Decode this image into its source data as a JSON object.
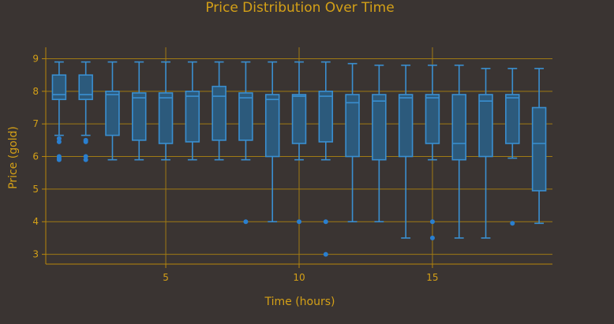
{
  "colors": {
    "background": "#3a3432",
    "text": "#d4a017",
    "grid": "#a07a14",
    "axis_line": "#b8860b",
    "box_fill": "#2c5a7c",
    "box_stroke": "#3a8fd0",
    "outlier": "#2a7fcf"
  },
  "chart_data": {
    "type": "box",
    "title": "Price Distribution Over Time",
    "xlabel": "Time (hours)",
    "ylabel": "Price (gold)",
    "xlim": [
      0.5,
      19.5
    ],
    "ylim": [
      2.7,
      9.35
    ],
    "xticks": [
      5,
      10,
      15
    ],
    "yticks": [
      3,
      4,
      5,
      6,
      7,
      8,
      9
    ],
    "grid": true,
    "boxes": [
      {
        "x": 1,
        "min": 6.65,
        "q1": 7.75,
        "median": 7.9,
        "q3": 8.5,
        "max": 8.9,
        "outliers": [
          6.55,
          6.45,
          6.0,
          5.95,
          5.9
        ]
      },
      {
        "x": 2,
        "min": 6.65,
        "q1": 7.75,
        "median": 7.9,
        "q3": 8.5,
        "max": 8.9,
        "outliers": [
          6.5,
          6.45,
          6.0,
          5.9
        ]
      },
      {
        "x": 3,
        "min": 5.9,
        "q1": 6.65,
        "median": 7.9,
        "q3": 8.0,
        "max": 8.9,
        "outliers": []
      },
      {
        "x": 4,
        "min": 5.9,
        "q1": 6.5,
        "median": 7.8,
        "q3": 7.95,
        "max": 8.9,
        "outliers": []
      },
      {
        "x": 5,
        "min": 5.9,
        "q1": 6.4,
        "median": 7.8,
        "q3": 7.95,
        "max": 8.9,
        "outliers": []
      },
      {
        "x": 6,
        "min": 5.9,
        "q1": 6.45,
        "median": 7.85,
        "q3": 8.0,
        "max": 8.9,
        "outliers": []
      },
      {
        "x": 7,
        "min": 5.9,
        "q1": 6.5,
        "median": 7.85,
        "q3": 8.15,
        "max": 8.9,
        "outliers": []
      },
      {
        "x": 8,
        "min": 5.9,
        "q1": 6.5,
        "median": 7.8,
        "q3": 7.95,
        "max": 8.9,
        "outliers": [
          4.0
        ]
      },
      {
        "x": 9,
        "min": 4.0,
        "q1": 6.0,
        "median": 7.75,
        "q3": 7.9,
        "max": 8.9,
        "outliers": []
      },
      {
        "x": 10,
        "min": 5.9,
        "q1": 6.4,
        "median": 7.85,
        "q3": 7.9,
        "max": 8.9,
        "outliers": [
          4.0
        ]
      },
      {
        "x": 11,
        "min": 5.9,
        "q1": 6.45,
        "median": 7.85,
        "q3": 8.0,
        "max": 8.9,
        "outliers": [
          4.0,
          3.0
        ]
      },
      {
        "x": 12,
        "min": 4.0,
        "q1": 6.0,
        "median": 7.65,
        "q3": 7.9,
        "max": 8.85,
        "outliers": []
      },
      {
        "x": 13,
        "min": 4.0,
        "q1": 5.9,
        "median": 7.7,
        "q3": 7.9,
        "max": 8.8,
        "outliers": []
      },
      {
        "x": 14,
        "min": 3.5,
        "q1": 6.0,
        "median": 7.8,
        "q3": 7.9,
        "max": 8.8,
        "outliers": []
      },
      {
        "x": 15,
        "min": 5.9,
        "q1": 6.4,
        "median": 7.8,
        "q3": 7.9,
        "max": 8.8,
        "outliers": [
          4.0,
          3.5
        ]
      },
      {
        "x": 16,
        "min": 3.5,
        "q1": 5.9,
        "median": 6.4,
        "q3": 7.9,
        "max": 8.8,
        "outliers": []
      },
      {
        "x": 17,
        "min": 3.5,
        "q1": 6.0,
        "median": 7.7,
        "q3": 7.9,
        "max": 8.7,
        "outliers": []
      },
      {
        "x": 18,
        "min": 5.95,
        "q1": 6.4,
        "median": 7.8,
        "q3": 7.9,
        "max": 8.7,
        "outliers": [
          3.95
        ]
      },
      {
        "x": 19,
        "min": 3.95,
        "q1": 4.95,
        "median": 6.4,
        "q3": 7.5,
        "max": 8.7,
        "outliers": []
      }
    ]
  }
}
